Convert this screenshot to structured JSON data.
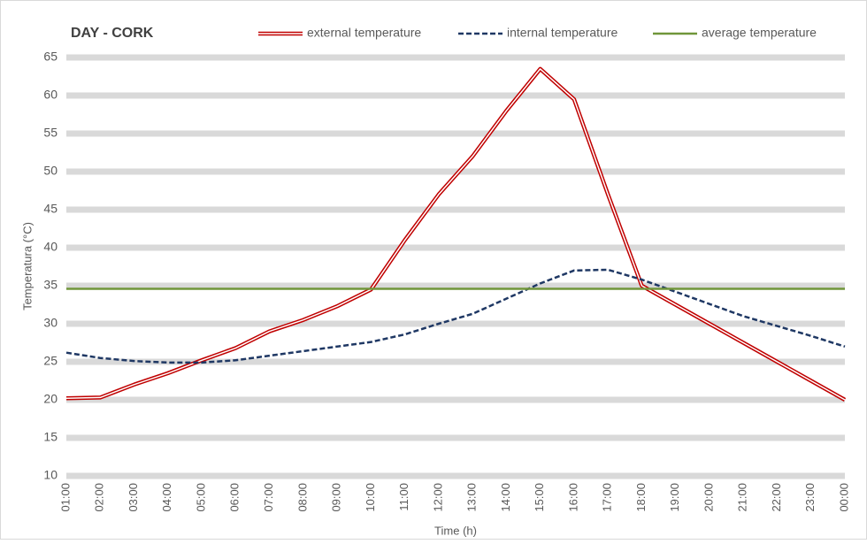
{
  "chart_data": {
    "type": "line",
    "title": "DAY - CORK",
    "x_label": "Time (h)",
    "y_label": "Temperatura (°C)",
    "categories": [
      "01:00",
      "02:00",
      "03:00",
      "04:00",
      "05:00",
      "06:00",
      "07:00",
      "08:00",
      "09:00",
      "10:00",
      "11:00",
      "12:00",
      "13:00",
      "14:00",
      "15:00",
      "16:00",
      "17:00",
      "18:00",
      "19:00",
      "20:00",
      "21:00",
      "22:00",
      "23:00",
      "00:00"
    ],
    "series": [
      {
        "name": "external temperature",
        "color": "#c00000",
        "style": "double",
        "values": [
          20.2,
          20.3,
          22,
          23.5,
          25.2,
          26.8,
          29,
          30.5,
          32.3,
          34.5,
          41,
          47,
          52,
          58,
          63.5,
          59.5,
          47,
          35,
          32.5,
          30,
          27.5,
          25,
          22.5,
          20
        ]
      },
      {
        "name": "internal temperature",
        "color": "#1f3864",
        "style": "dashed",
        "values": [
          26.2,
          25.5,
          25.1,
          24.9,
          24.9,
          25.2,
          25.8,
          26.4,
          27,
          27.6,
          28.6,
          30,
          31.3,
          33.3,
          35.3,
          37,
          37.1,
          35.8,
          34.2,
          32.6,
          31,
          29.7,
          28.4,
          27
        ]
      },
      {
        "name": "average temperature",
        "color": "#70963a",
        "style": "solid",
        "values": [
          34.6,
          34.6,
          34.6,
          34.6,
          34.6,
          34.6,
          34.6,
          34.6,
          34.6,
          34.6,
          34.6,
          34.6,
          34.6,
          34.6,
          34.6,
          34.6,
          34.6,
          34.6,
          34.6,
          34.6,
          34.6,
          34.6,
          34.6,
          34.6
        ]
      }
    ],
    "ylim": [
      10,
      65
    ],
    "yticks": [
      10,
      15,
      20,
      25,
      30,
      35,
      40,
      45,
      50,
      55,
      60,
      65
    ],
    "grid": true,
    "legend": "top"
  }
}
